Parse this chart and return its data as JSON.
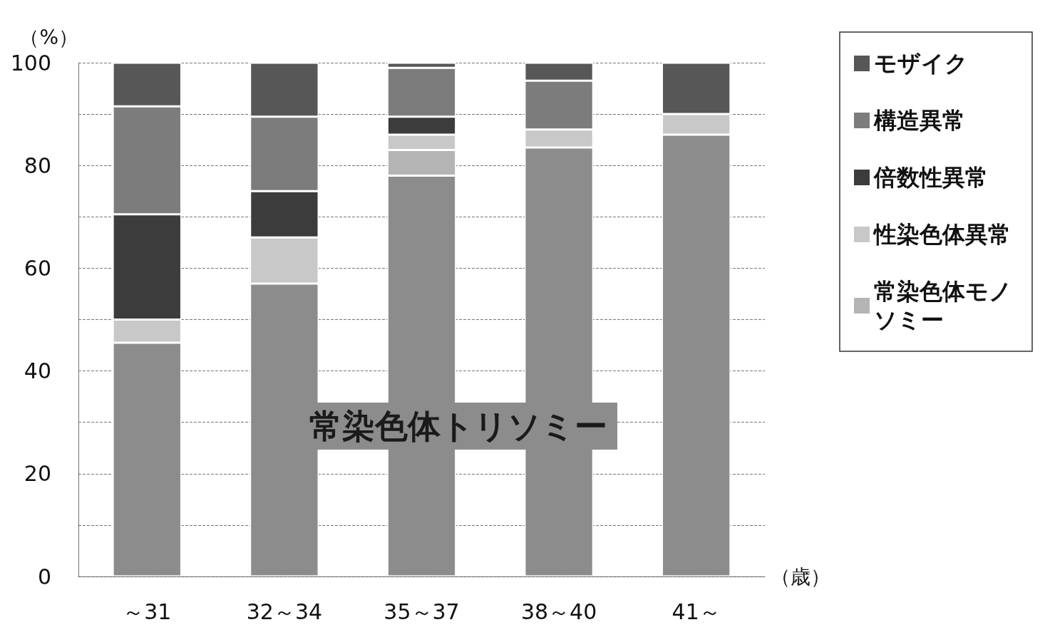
{
  "chart_data": {
    "type": "bar",
    "stacked": true,
    "ylabel": "（%）",
    "xlabel": "（歳）",
    "categories": [
      "～31",
      "32～34",
      "35～37",
      "38～40",
      "41～"
    ],
    "series": [
      {
        "name": "常染色体トリソミー",
        "color": "#8c8c8c",
        "values": [
          45.5,
          57,
          78,
          83.5,
          86
        ]
      },
      {
        "name": "常染色体モノソミー",
        "color": "#b4b4b4",
        "values": [
          0,
          0,
          5,
          0,
          0
        ]
      },
      {
        "name": "性染色体異常",
        "color": "#c8c8c8",
        "values": [
          4.5,
          9,
          3,
          3.5,
          4
        ]
      },
      {
        "name": "倍数性異常",
        "color": "#3c3c3c",
        "values": [
          20.5,
          9,
          3.5,
          0,
          0
        ]
      },
      {
        "name": "構造異常",
        "color": "#7c7c7c",
        "values": [
          21,
          14.5,
          9.5,
          9.5,
          0
        ]
      },
      {
        "name": "モザイク",
        "color": "#575757",
        "values": [
          8.5,
          10.5,
          1,
          3.5,
          10
        ]
      }
    ],
    "ylim": [
      0,
      100
    ],
    "yticks": [
      0,
      {
        "value": 10,
        "label": null
      },
      20,
      {
        "value": 30,
        "label": null
      },
      40,
      {
        "value": 50,
        "label": null
      },
      60,
      {
        "value": 70,
        "label": null
      },
      80,
      {
        "value": 90,
        "label": null
      },
      100
    ],
    "grid": "y",
    "legend": "right"
  }
}
